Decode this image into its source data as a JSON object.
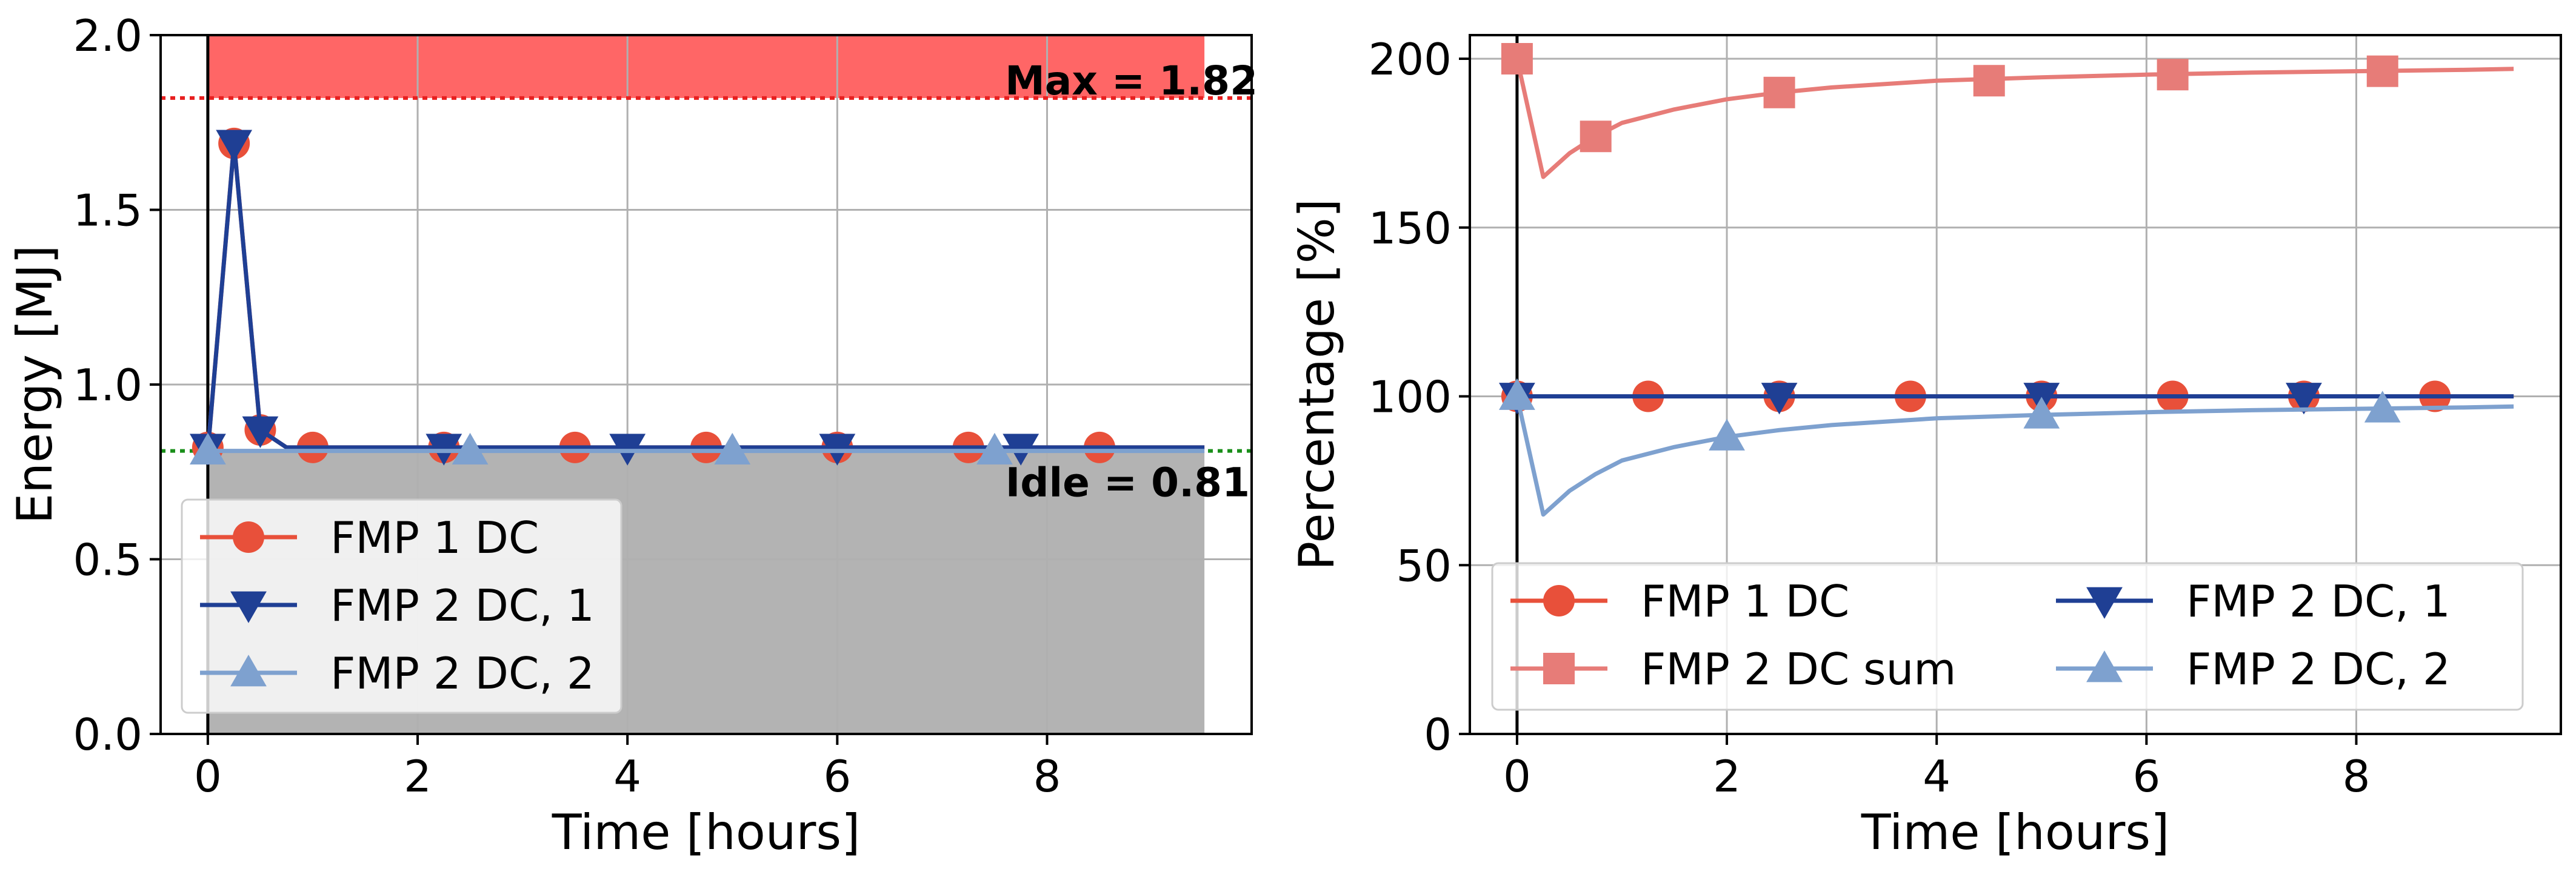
{
  "colors": {
    "fmp1": "#e8503a",
    "fmp2_1": "#1f3f94",
    "fmp2_2": "#7ea1cf",
    "fmp2_sum": "#e77c78",
    "max_band": "#ff6666",
    "idle_band": "#b3b3b3",
    "max_line": "#e81f1f",
    "idle_line": "#1a8f1a"
  },
  "chart_data": [
    {
      "type": "line",
      "xlabel": "Time [hours]",
      "ylabel": "Energy [MJ]",
      "xlim": [
        -0.45,
        9.95
      ],
      "ylim": [
        0,
        2.0
      ],
      "xticks": [
        "0",
        "2",
        "4",
        "6",
        "8"
      ],
      "yticks": [
        "0.0",
        "0.5",
        "1.0",
        "1.5",
        "2.0"
      ],
      "grid": true,
      "legend_position": "lower-left",
      "annotations": {
        "max_label": "Max = 1.82",
        "max_value": 1.82,
        "idle_label": "Idle = 0.81",
        "idle_value": 0.81,
        "band_end_x": 9.5
      },
      "series": [
        {
          "name": "FMP 1 DC",
          "color_key": "fmp1",
          "marker": "circle",
          "x": [
            0,
            0.25,
            0.5,
            0.75,
            1.0,
            9.5
          ],
          "y": [
            0.81,
            1.69,
            0.87,
            0.82,
            0.82,
            0.82
          ],
          "marker_x": [
            0,
            0.25,
            0.5,
            1.0,
            2.25,
            3.5,
            4.75,
            6.0,
            7.25,
            8.5
          ],
          "marker_y": [
            0.82,
            1.69,
            0.87,
            0.82,
            0.82,
            0.82,
            0.82,
            0.82,
            0.82,
            0.82
          ]
        },
        {
          "name": "FMP 2 DC, 1",
          "color_key": "fmp2_1",
          "marker": "triangle-down",
          "x": [
            0,
            0.25,
            0.5,
            0.75,
            9.5
          ],
          "y": [
            0.81,
            1.69,
            0.87,
            0.82,
            0.82
          ],
          "marker_x": [
            0,
            0.25,
            0.5,
            2.25,
            4.0,
            6.0,
            7.75
          ],
          "marker_y": [
            0.82,
            1.69,
            0.87,
            0.82,
            0.82,
            0.82,
            0.82
          ]
        },
        {
          "name": "FMP 2 DC, 2",
          "color_key": "fmp2_2",
          "marker": "triangle-up",
          "x": [
            0,
            9.5
          ],
          "y": [
            0.81,
            0.81
          ],
          "marker_x": [
            0,
            2.5,
            5.0,
            7.5
          ],
          "marker_y": [
            0.81,
            0.81,
            0.81,
            0.81
          ]
        }
      ]
    },
    {
      "type": "line",
      "xlabel": "Time [hours]",
      "ylabel": "Percentage [%]",
      "xlim": [
        -0.45,
        9.95
      ],
      "ylim": [
        0,
        207
      ],
      "xticks": [
        "0",
        "2",
        "4",
        "6",
        "8"
      ],
      "yticks": [
        "0",
        "50",
        "100",
        "150",
        "200"
      ],
      "grid": true,
      "legend_position": "lower-center",
      "series": [
        {
          "name": "FMP 1 DC",
          "color_key": "fmp1",
          "marker": "circle",
          "x": [
            0,
            9.5
          ],
          "y": [
            100,
            100
          ],
          "marker_x": [
            0,
            1.25,
            2.5,
            3.75,
            5.0,
            6.25,
            7.5,
            8.75
          ],
          "marker_y": [
            100,
            100,
            100,
            100,
            100,
            100,
            100,
            100
          ]
        },
        {
          "name": "FMP 2 DC sum",
          "color_key": "fmp2_sum",
          "marker": "square",
          "x": [
            0,
            0.25,
            0.5,
            0.75,
            1.0,
            1.5,
            2.0,
            2.5,
            3.0,
            4.0,
            5.0,
            6.0,
            7.0,
            8.0,
            9.0,
            9.5
          ],
          "y": [
            200,
            165,
            172,
            177,
            181,
            185,
            188,
            190,
            191.5,
            193.5,
            194.5,
            195.3,
            195.9,
            196.3,
            196.7,
            197
          ],
          "marker_x": [
            0,
            0.75,
            2.5,
            4.5,
            6.25,
            8.25
          ],
          "marker_y": [
            200,
            177,
            190,
            193.5,
            195.3,
            196.3
          ]
        },
        {
          "name": "FMP 2 DC, 1",
          "color_key": "fmp2_1",
          "marker": "triangle-down",
          "x": [
            0,
            9.5
          ],
          "y": [
            100,
            100
          ],
          "marker_x": [
            0,
            2.5,
            5.0,
            7.5
          ],
          "marker_y": [
            100,
            100,
            100,
            100
          ]
        },
        {
          "name": "FMP 2 DC, 2",
          "color_key": "fmp2_2",
          "marker": "triangle-up",
          "x": [
            0,
            0.25,
            0.5,
            0.75,
            1.0,
            1.5,
            2.0,
            2.5,
            3.0,
            4.0,
            5.0,
            6.0,
            7.0,
            8.0,
            9.0,
            9.5
          ],
          "y": [
            100,
            65,
            72,
            77,
            81,
            85,
            88,
            90,
            91.5,
            93.5,
            94.5,
            95.3,
            95.9,
            96.3,
            96.7,
            97
          ],
          "marker_x": [
            0,
            2.0,
            5.0,
            8.25
          ],
          "marker_y": [
            100,
            88,
            94.5,
            96.3
          ]
        }
      ]
    }
  ]
}
